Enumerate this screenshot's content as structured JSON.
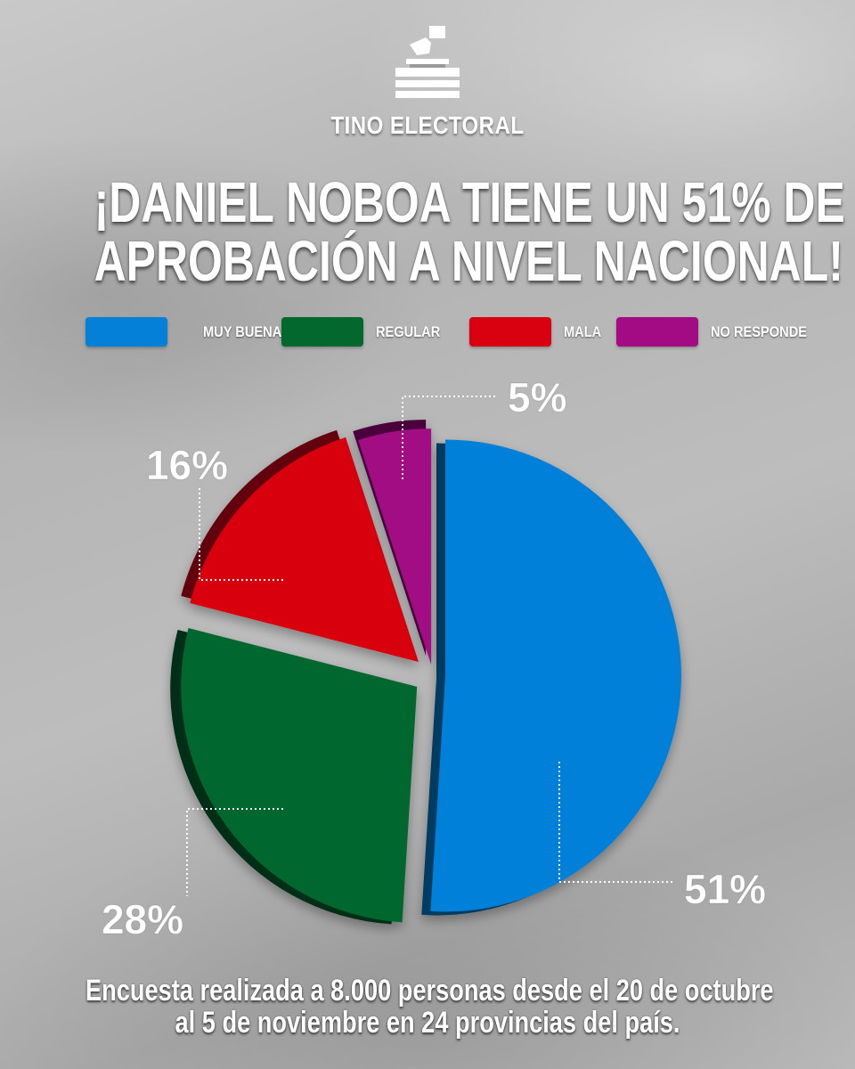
{
  "brand": {
    "name": "TINO ELECTORAL",
    "icon": "ballot-box-icon"
  },
  "headline": {
    "line1": "¡DANIEL NOBOA TIENE UN 51% DE",
    "line2": "APROBACIÓN A NIVEL NACIONAL!"
  },
  "legend": [
    {
      "label": "MUY BUENA",
      "color": "#0580d9"
    },
    {
      "label": "REGULAR",
      "color": "#03682e"
    },
    {
      "label": "MALA",
      "color": "#d9000f"
    },
    {
      "label": "NO RESPONDE",
      "color": "#a30b84"
    }
  ],
  "chart_data": {
    "type": "pie",
    "categories": [
      "MUY BUENA",
      "REGULAR",
      "MALA",
      "NO RESPONDE"
    ],
    "values": [
      51,
      28,
      16,
      5
    ],
    "labels": [
      "51%",
      "28%",
      "16%",
      "5%"
    ],
    "colors": [
      "#0580d9",
      "#03682e",
      "#d9000f",
      "#a30b84"
    ],
    "title": "¡DANIEL NOBOA TIENE UN 51% DE APROBACIÓN A NIVEL NACIONAL!",
    "legend_position": "top"
  },
  "footnote": {
    "line1": "Encuesta realizada a 8.000 personas desde el 20 de octubre",
    "line2": "al 5 de noviembre en 24 provincias del país."
  }
}
